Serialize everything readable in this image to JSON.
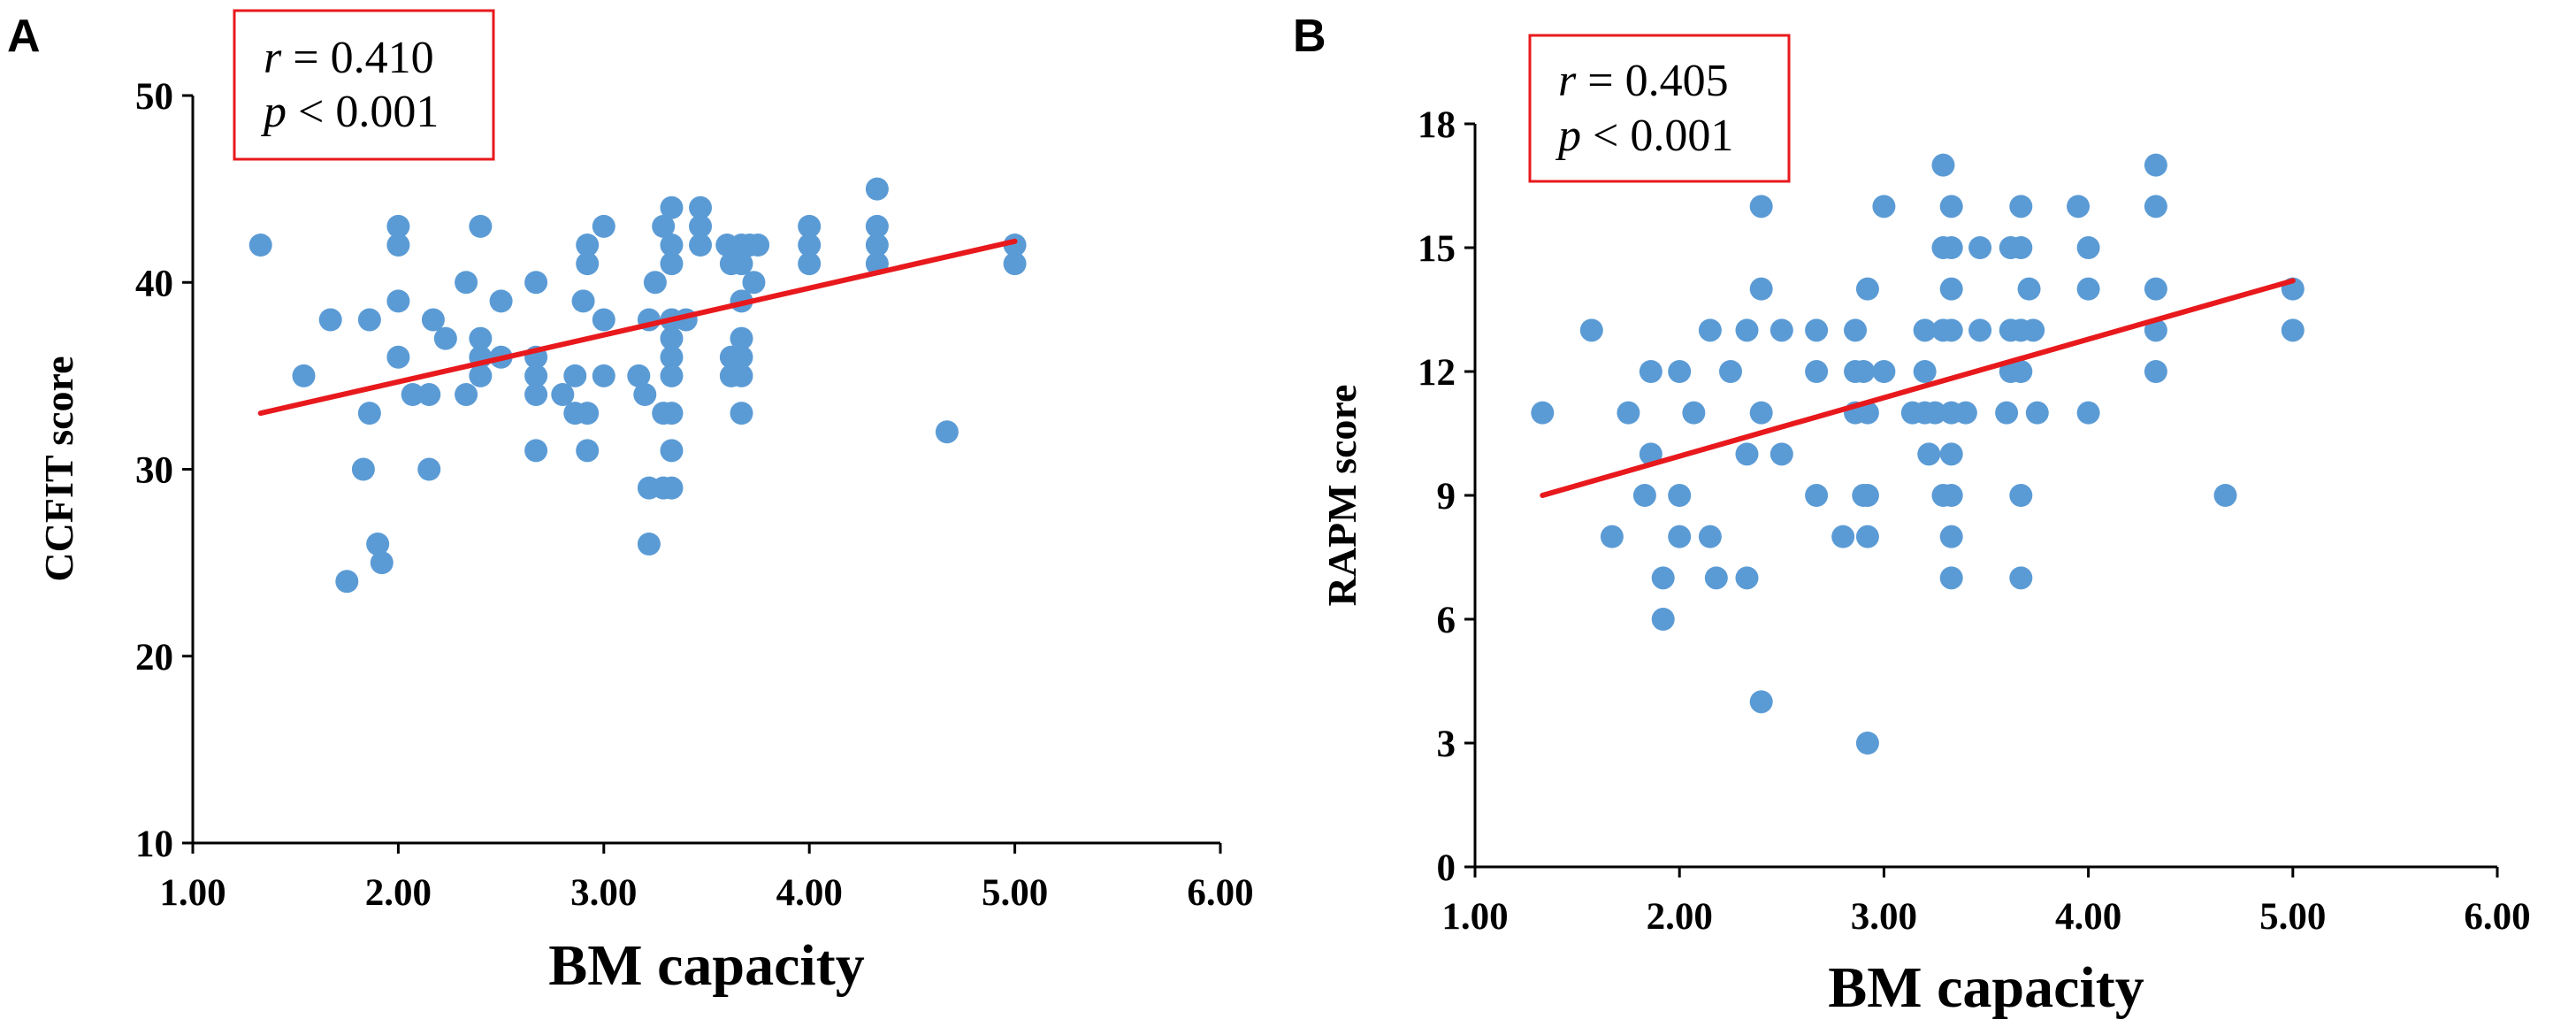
{
  "colors": {
    "point": "#5b9bd5",
    "trend": "#e8191d",
    "box": "#e8191d",
    "axis": "#000000"
  },
  "chart_data": [
    {
      "type": "scatter",
      "panel_label": "A",
      "title": "",
      "xlabel": "BM capacity",
      "ylabel": "CCFIT score",
      "xlim": [
        1.0,
        6.0
      ],
      "ylim": [
        10,
        50
      ],
      "x_ticks": [
        1,
        2,
        3,
        4,
        5,
        6
      ],
      "x_tick_labels": [
        "1.00",
        "2.00",
        "3.00",
        "4.00",
        "5.00",
        "6.00"
      ],
      "y_ticks": [
        10,
        20,
        30,
        40,
        50
      ],
      "y_tick_labels": [
        "10",
        "20",
        "30",
        "40",
        "50"
      ],
      "stats": {
        "r_symbol": "r",
        "r_text": " = 0.410",
        "p_symbol": "p",
        "p_text": " < 0.001"
      },
      "trendline": {
        "x": [
          1.33,
          5.0
        ],
        "y": [
          33.0,
          42.2
        ]
      },
      "points": [
        [
          1.33,
          42
        ],
        [
          1.54,
          35
        ],
        [
          1.67,
          38
        ],
        [
          1.75,
          24
        ],
        [
          1.83,
          30
        ],
        [
          1.86,
          33
        ],
        [
          1.86,
          38
        ],
        [
          1.9,
          26
        ],
        [
          1.92,
          25
        ],
        [
          2.0,
          43
        ],
        [
          2.0,
          42
        ],
        [
          2.0,
          39
        ],
        [
          2.0,
          36
        ],
        [
          2.07,
          34
        ],
        [
          2.15,
          34
        ],
        [
          2.15,
          30
        ],
        [
          2.17,
          38
        ],
        [
          2.23,
          37
        ],
        [
          2.33,
          40
        ],
        [
          2.33,
          34
        ],
        [
          2.4,
          43
        ],
        [
          2.4,
          37
        ],
        [
          2.4,
          36
        ],
        [
          2.4,
          35
        ],
        [
          2.5,
          39
        ],
        [
          2.5,
          36
        ],
        [
          2.67,
          40
        ],
        [
          2.67,
          36
        ],
        [
          2.67,
          35
        ],
        [
          2.67,
          34
        ],
        [
          2.67,
          31
        ],
        [
          2.8,
          34
        ],
        [
          2.86,
          35
        ],
        [
          2.86,
          33
        ],
        [
          2.9,
          39
        ],
        [
          2.92,
          42
        ],
        [
          2.92,
          41
        ],
        [
          2.92,
          33
        ],
        [
          2.92,
          31
        ],
        [
          3.0,
          43
        ],
        [
          3.0,
          38
        ],
        [
          3.0,
          35
        ],
        [
          3.17,
          35
        ],
        [
          3.2,
          34
        ],
        [
          3.22,
          29
        ],
        [
          3.22,
          26
        ],
        [
          3.22,
          38
        ],
        [
          3.25,
          40
        ],
        [
          3.29,
          43
        ],
        [
          3.29,
          33
        ],
        [
          3.29,
          29
        ],
        [
          3.33,
          44
        ],
        [
          3.33,
          42
        ],
        [
          3.33,
          41
        ],
        [
          3.33,
          38
        ],
        [
          3.33,
          37
        ],
        [
          3.33,
          36
        ],
        [
          3.33,
          35
        ],
        [
          3.33,
          33
        ],
        [
          3.33,
          31
        ],
        [
          3.33,
          29
        ],
        [
          3.4,
          38
        ],
        [
          3.47,
          44
        ],
        [
          3.47,
          43
        ],
        [
          3.47,
          42
        ],
        [
          3.6,
          42
        ],
        [
          3.62,
          41
        ],
        [
          3.62,
          36
        ],
        [
          3.62,
          35
        ],
        [
          3.67,
          42
        ],
        [
          3.67,
          41
        ],
        [
          3.67,
          39
        ],
        [
          3.67,
          37
        ],
        [
          3.67,
          36
        ],
        [
          3.67,
          35
        ],
        [
          3.67,
          33
        ],
        [
          3.71,
          42
        ],
        [
          3.73,
          40
        ],
        [
          3.75,
          42
        ],
        [
          4.0,
          43
        ],
        [
          4.0,
          42
        ],
        [
          4.0,
          41
        ],
        [
          4.33,
          45
        ],
        [
          4.33,
          43
        ],
        [
          4.33,
          42
        ],
        [
          4.33,
          41
        ],
        [
          4.67,
          32
        ],
        [
          5.0,
          42
        ],
        [
          5.0,
          41
        ]
      ]
    },
    {
      "type": "scatter",
      "panel_label": "B",
      "title": "",
      "xlabel": "BM capacity",
      "ylabel": "RAPM score",
      "xlim": [
        1.0,
        6.0
      ],
      "ylim": [
        0,
        18
      ],
      "x_ticks": [
        1,
        2,
        3,
        4,
        5,
        6
      ],
      "x_tick_labels": [
        "1.00",
        "2.00",
        "3.00",
        "4.00",
        "5.00",
        "6.00"
      ],
      "y_ticks": [
        0,
        3,
        6,
        9,
        12,
        15,
        18
      ],
      "y_tick_labels": [
        "0",
        "3",
        "6",
        "9",
        "12",
        "15",
        "18"
      ],
      "stats": {
        "r_symbol": "r",
        "r_text": " = 0.405",
        "p_symbol": "p",
        "p_text": " < 0.001"
      },
      "trendline": {
        "x": [
          1.33,
          5.0
        ],
        "y": [
          9.0,
          14.2
        ]
      },
      "points": [
        [
          1.33,
          11
        ],
        [
          1.57,
          13
        ],
        [
          1.67,
          8
        ],
        [
          1.75,
          11
        ],
        [
          1.83,
          9
        ],
        [
          1.86,
          10
        ],
        [
          1.86,
          12
        ],
        [
          1.92,
          6
        ],
        [
          1.92,
          7
        ],
        [
          2.0,
          12
        ],
        [
          2.0,
          9
        ],
        [
          2.0,
          8
        ],
        [
          2.07,
          11
        ],
        [
          2.15,
          13
        ],
        [
          2.15,
          8
        ],
        [
          2.18,
          7
        ],
        [
          2.25,
          12
        ],
        [
          2.33,
          13
        ],
        [
          2.33,
          10
        ],
        [
          2.33,
          7
        ],
        [
          2.4,
          16
        ],
        [
          2.4,
          14
        ],
        [
          2.4,
          11
        ],
        [
          2.4,
          4
        ],
        [
          2.5,
          13
        ],
        [
          2.5,
          10
        ],
        [
          2.67,
          13
        ],
        [
          2.67,
          12
        ],
        [
          2.67,
          9
        ],
        [
          2.8,
          8
        ],
        [
          2.86,
          13
        ],
        [
          2.86,
          12
        ],
        [
          2.86,
          11
        ],
        [
          2.9,
          12
        ],
        [
          2.9,
          9
        ],
        [
          2.92,
          14
        ],
        [
          2.92,
          11
        ],
        [
          2.92,
          9
        ],
        [
          2.92,
          8
        ],
        [
          2.92,
          3
        ],
        [
          3.0,
          16
        ],
        [
          3.0,
          12
        ],
        [
          3.14,
          11
        ],
        [
          3.2,
          13
        ],
        [
          3.2,
          12
        ],
        [
          3.2,
          11
        ],
        [
          3.22,
          10
        ],
        [
          3.25,
          11
        ],
        [
          3.29,
          17
        ],
        [
          3.29,
          15
        ],
        [
          3.29,
          13
        ],
        [
          3.29,
          9
        ],
        [
          3.33,
          16
        ],
        [
          3.33,
          15
        ],
        [
          3.33,
          14
        ],
        [
          3.33,
          13
        ],
        [
          3.33,
          11
        ],
        [
          3.33,
          10
        ],
        [
          3.33,
          9
        ],
        [
          3.33,
          8
        ],
        [
          3.33,
          7
        ],
        [
          3.4,
          11
        ],
        [
          3.47,
          15
        ],
        [
          3.47,
          13
        ],
        [
          3.6,
          11
        ],
        [
          3.62,
          15
        ],
        [
          3.62,
          13
        ],
        [
          3.62,
          12
        ],
        [
          3.67,
          16
        ],
        [
          3.67,
          15
        ],
        [
          3.67,
          13
        ],
        [
          3.67,
          12
        ],
        [
          3.67,
          9
        ],
        [
          3.67,
          7
        ],
        [
          3.71,
          14
        ],
        [
          3.73,
          13
        ],
        [
          3.75,
          11
        ],
        [
          3.95,
          16
        ],
        [
          4.0,
          15
        ],
        [
          4.0,
          14
        ],
        [
          4.0,
          11
        ],
        [
          4.33,
          17
        ],
        [
          4.33,
          16
        ],
        [
          4.33,
          14
        ],
        [
          4.33,
          13
        ],
        [
          4.33,
          12
        ],
        [
          4.67,
          9
        ],
        [
          5.0,
          14
        ],
        [
          5.0,
          13
        ]
      ]
    }
  ]
}
